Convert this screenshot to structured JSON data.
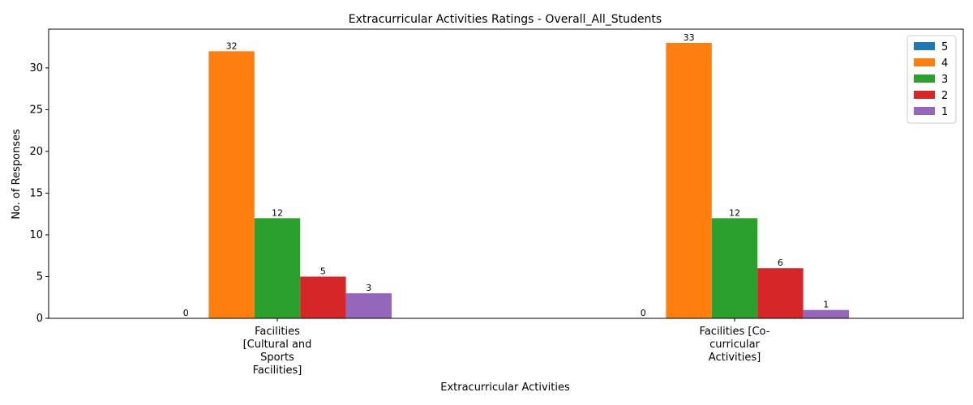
{
  "chart_data": {
    "type": "bar",
    "title": "Extracurricular Activities Ratings - Overall_All_Students",
    "xlabel": "Extracurricular Activities",
    "ylabel": "No. of Responses",
    "categories": [
      [
        "Facilities",
        "[Cultural and",
        "Sports",
        "Facilities]"
      ],
      [
        "Facilities [Co-",
        "curricular",
        "Activities]"
      ]
    ],
    "series": [
      {
        "name": "5",
        "color": "#1f77b4",
        "values": [
          0,
          0
        ]
      },
      {
        "name": "4",
        "color": "#ff7f0e",
        "values": [
          32,
          33
        ]
      },
      {
        "name": "3",
        "color": "#2ca02c",
        "values": [
          12,
          12
        ]
      },
      {
        "name": "2",
        "color": "#d62728",
        "values": [
          5,
          6
        ]
      },
      {
        "name": "1",
        "color": "#9467bd",
        "values": [
          3,
          1
        ]
      }
    ],
    "ylim": [
      0,
      34.65
    ],
    "yticks": [
      0,
      5,
      10,
      15,
      20,
      25,
      30
    ],
    "grid": false,
    "legend_position": "top-right",
    "data_labels": true
  }
}
